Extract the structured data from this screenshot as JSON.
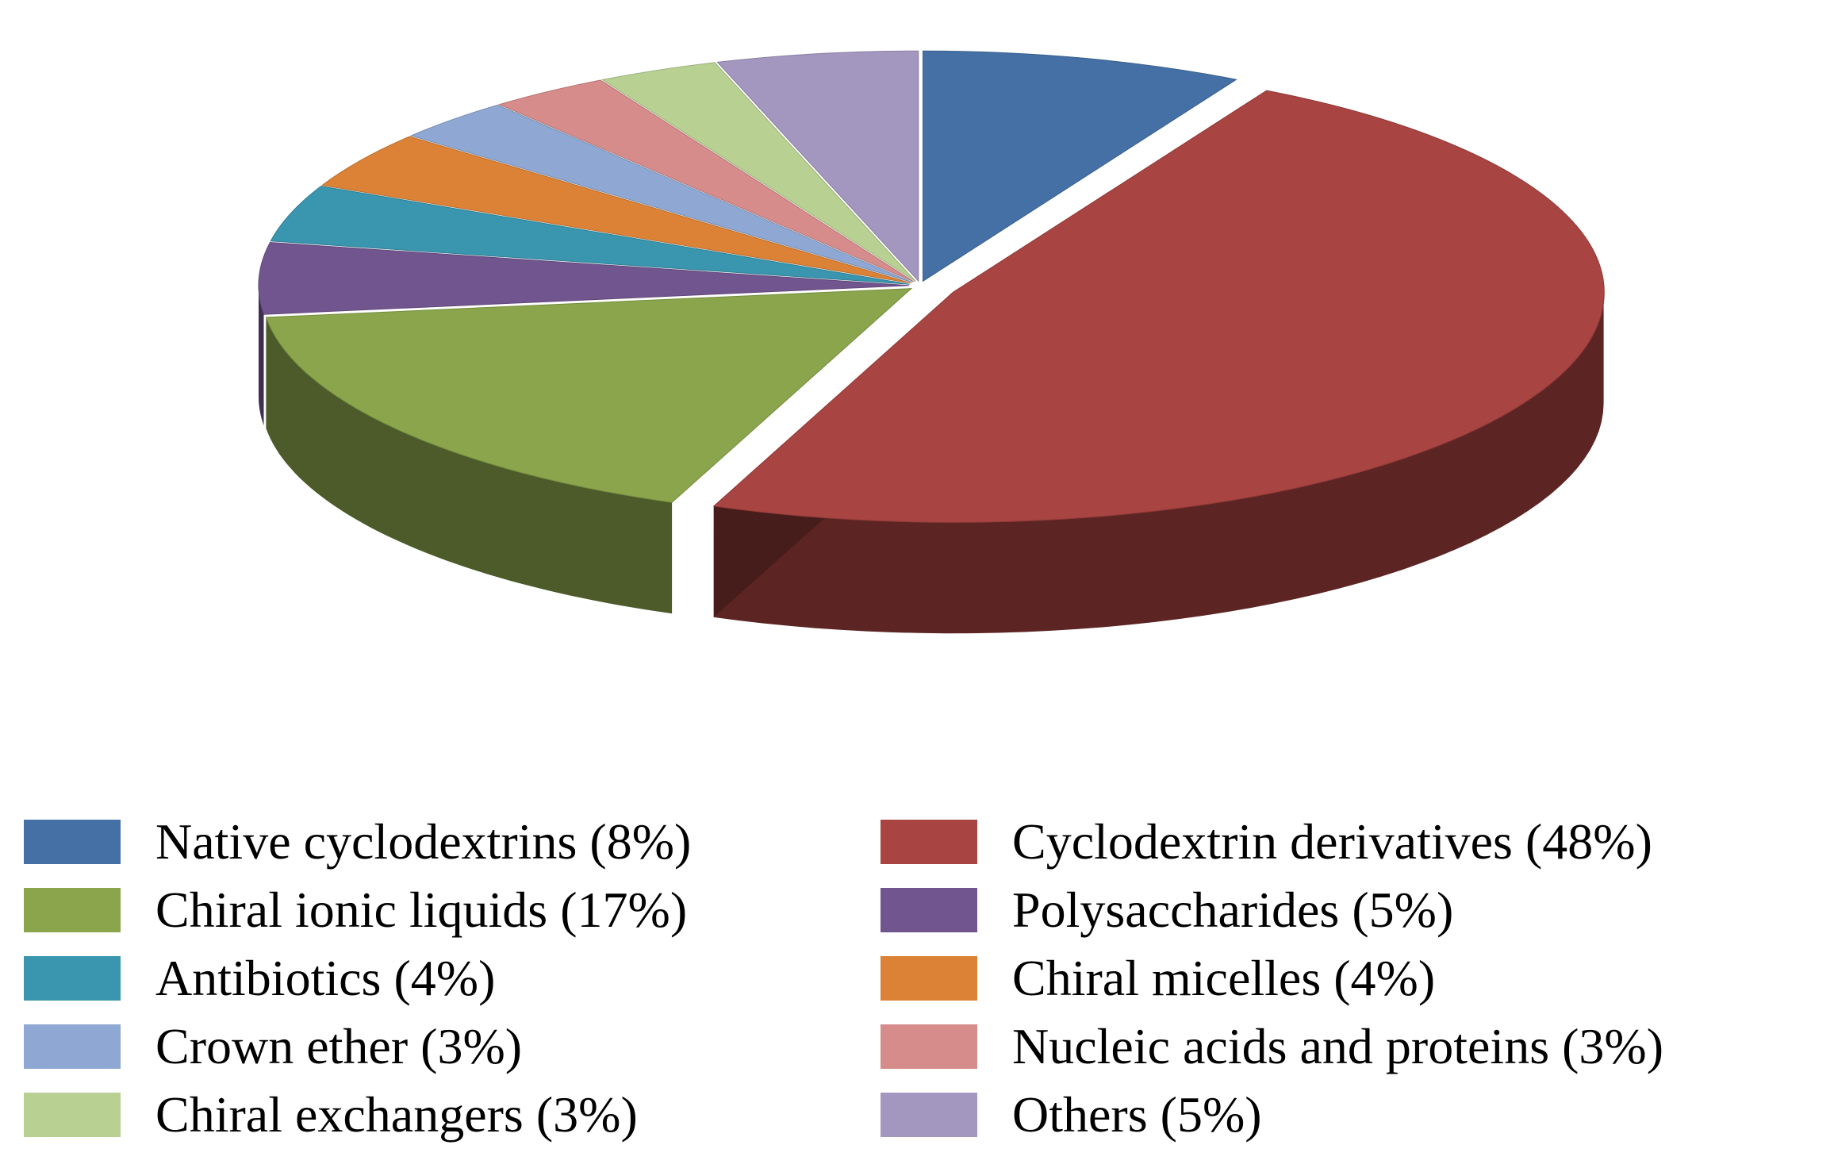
{
  "chart_data": {
    "type": "pie",
    "title": "",
    "style": "3d-exploded",
    "legend_position": "bottom",
    "slices": [
      {
        "label": "Native cyclodextrins (8%)",
        "value": 8,
        "color": "#4470A5"
      },
      {
        "label": "Cyclodextrin derivatives (48%)",
        "value": 48,
        "color": "#A84442"
      },
      {
        "label": "Chiral ionic liquids (17%)",
        "value": 17,
        "color": "#8AA54B"
      },
      {
        "label": "Polysaccharides (5%)",
        "value": 5,
        "color": "#71558F"
      },
      {
        "label": "Antibiotics (4%)",
        "value": 4,
        "color": "#3A95AE"
      },
      {
        "label": "Chiral micelles (4%)",
        "value": 4,
        "color": "#DB8237"
      },
      {
        "label": "Crown ether (3%)",
        "value": 3,
        "color": "#8FA8D3"
      },
      {
        "label": "Nucleic acids and proteins (3%)",
        "value": 3,
        "color": "#D58C8B"
      },
      {
        "label": "Chiral exchangers (3%)",
        "value": 3,
        "color": "#B8D092"
      },
      {
        "label": "Others (5%)",
        "value": 5,
        "color": "#A396BF"
      }
    ]
  }
}
